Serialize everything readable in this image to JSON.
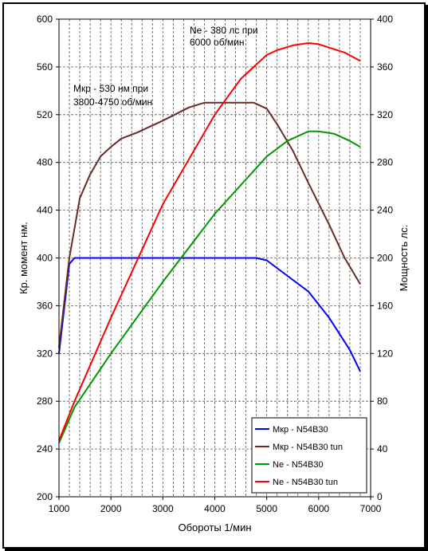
{
  "chart_data": {
    "type": "line",
    "xlabel": "Обороты 1/мин",
    "ylabel_left": "Кр. момент нм.",
    "ylabel_right": "Мощность лс.",
    "xlim": [
      1000,
      7000
    ],
    "ylim_left": [
      200,
      600
    ],
    "ylim_right": [
      0,
      400
    ],
    "xticks": [
      1000,
      2000,
      3000,
      4000,
      5000,
      6000,
      7000
    ],
    "yticks_left": [
      200,
      240,
      280,
      320,
      360,
      400,
      440,
      480,
      520,
      560,
      600
    ],
    "yticks_right": [
      0,
      40,
      80,
      120,
      160,
      200,
      240,
      280,
      320,
      360,
      400
    ],
    "grid": true,
    "legend_position": "bottom-right",
    "annotations": [
      {
        "lines": [
          "Ne - 380 лс при",
          "6000 об/мин"
        ]
      },
      {
        "lines": [
          "Mкр - 530 нм при",
          "3800-4750 об/мин"
        ]
      }
    ],
    "series": [
      {
        "name": "Mкр - N54B30",
        "color": "#0000ff",
        "axis": "left",
        "points": [
          [
            1000,
            320
          ],
          [
            1200,
            395
          ],
          [
            1300,
            400
          ],
          [
            1500,
            400
          ],
          [
            2000,
            400
          ],
          [
            3000,
            400
          ],
          [
            4000,
            400
          ],
          [
            4800,
            400
          ],
          [
            5000,
            398
          ],
          [
            5400,
            385
          ],
          [
            5800,
            372
          ],
          [
            6200,
            350
          ],
          [
            6600,
            323
          ],
          [
            6800,
            305
          ]
        ]
      },
      {
        "name": "Mкр - N54B30 tun",
        "color": "#6b2a2a",
        "axis": "left",
        "points": [
          [
            1000,
            325
          ],
          [
            1200,
            400
          ],
          [
            1400,
            450
          ],
          [
            1600,
            470
          ],
          [
            1800,
            485
          ],
          [
            2000,
            493
          ],
          [
            2200,
            500
          ],
          [
            2500,
            505
          ],
          [
            3000,
            515
          ],
          [
            3500,
            526
          ],
          [
            3800,
            530
          ],
          [
            4750,
            530
          ],
          [
            5000,
            525
          ],
          [
            5200,
            512
          ],
          [
            5500,
            490
          ],
          [
            5800,
            463
          ],
          [
            6200,
            428
          ],
          [
            6500,
            400
          ],
          [
            6800,
            378
          ]
        ]
      },
      {
        "name": "Ne - N54B30",
        "color": "#009900",
        "axis": "right",
        "points": [
          [
            1000,
            45
          ],
          [
            1300,
            75
          ],
          [
            2000,
            120
          ],
          [
            3000,
            180
          ],
          [
            4000,
            237
          ],
          [
            5000,
            285
          ],
          [
            5400,
            298
          ],
          [
            5800,
            306
          ],
          [
            6000,
            306
          ],
          [
            6300,
            304
          ],
          [
            6600,
            298
          ],
          [
            6800,
            293
          ]
        ]
      },
      {
        "name": "Ne - N54B30 tun",
        "color": "#ff0000",
        "axis": "right",
        "points": [
          [
            1000,
            47
          ],
          [
            1300,
            80
          ],
          [
            2000,
            150
          ],
          [
            3000,
            245
          ],
          [
            4000,
            320
          ],
          [
            4500,
            350
          ],
          [
            5000,
            370
          ],
          [
            5200,
            374
          ],
          [
            5500,
            378
          ],
          [
            5800,
            380
          ],
          [
            6000,
            379
          ],
          [
            6500,
            372
          ],
          [
            6800,
            365
          ]
        ]
      }
    ]
  }
}
